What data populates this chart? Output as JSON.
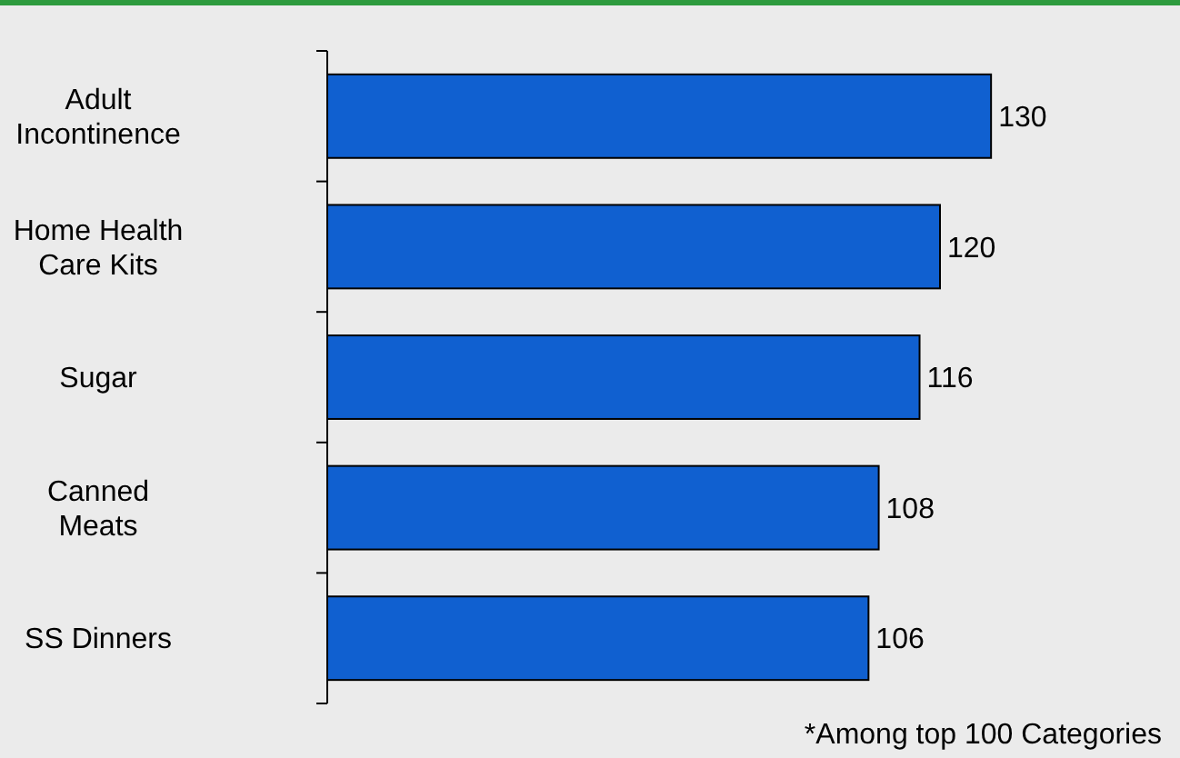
{
  "chart_data": {
    "type": "bar",
    "orientation": "horizontal",
    "categories": [
      "Adult Incontinence",
      "Home Health Care Kits",
      "Sugar",
      "Canned Meats",
      "SS Dinners"
    ],
    "values": [
      130,
      120,
      116,
      108,
      106
    ],
    "color": "#1060d0",
    "data_labels": true,
    "annotations": [
      "*Among top 100 Categories"
    ]
  }
}
